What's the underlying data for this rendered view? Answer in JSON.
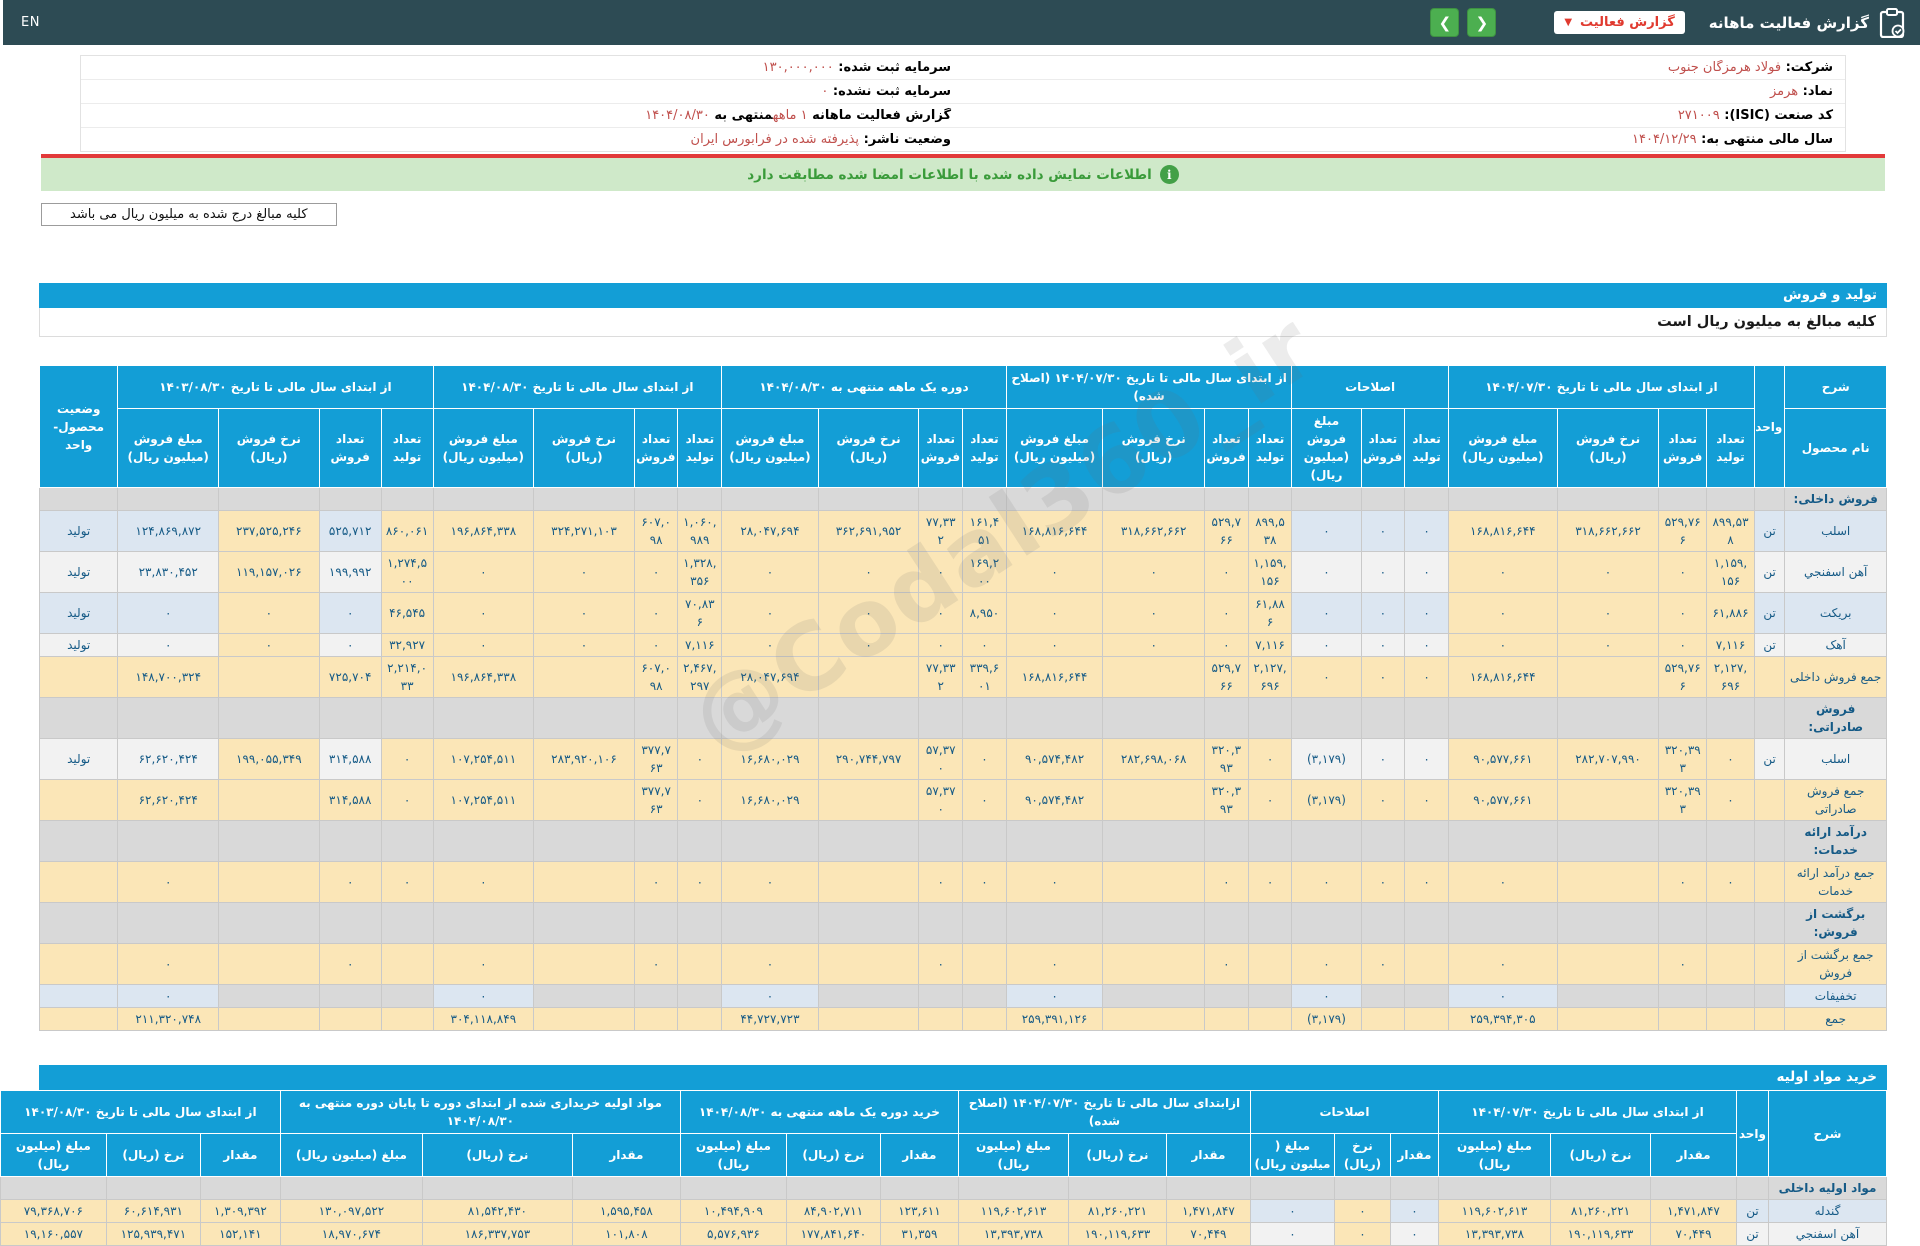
{
  "topbar": {
    "lang": "EN",
    "title": "گزارش فعالیت ماهانه",
    "dropdown_label": "گزارش فعالیت",
    "nav_next": "❯",
    "nav_prev": "❮"
  },
  "info": {
    "rows": [
      {
        "right": [
          {
            "t": "شرکت: ",
            "b": 1
          },
          {
            "t": "فولاد هرمزگان جنوب",
            "hl": 1,
            "link": 1
          }
        ],
        "left": [
          {
            "t": "سرمایه ثبت شده: ",
            "b": 1
          },
          {
            "t": "۱۳۰,۰۰۰,۰۰۰",
            "hl": 1
          }
        ]
      },
      {
        "right": [
          {
            "t": "نماد: ",
            "b": 1
          },
          {
            "t": "هرمز",
            "hl": 1,
            "link": 1
          }
        ],
        "left": [
          {
            "t": "سرمایه ثبت نشده: ",
            "b": 1
          },
          {
            "t": "۰",
            "hl": 1
          }
        ]
      },
      {
        "right": [
          {
            "t": "کد صنعت (ISIC): ",
            "b": 1
          },
          {
            "t": "۲۷۱۰۰۹",
            "hl": 1
          }
        ],
        "left": [
          {
            "t": "گزارش فعالیت ماهانه ",
            "b": 1
          },
          {
            "t": "۱ ماهه",
            "hl": 1
          },
          {
            "t": "منتهی به ",
            "b": 1
          },
          {
            "t": "۱۴۰۴/۰۸/۳۰",
            "hl": 1
          }
        ]
      },
      {
        "right": [
          {
            "t": "سال مالی منتهی به: ",
            "b": 1
          },
          {
            "t": "۱۴۰۴/۱۲/۲۹",
            "hl": 1
          }
        ],
        "left": [
          {
            "t": "وضعیت ناشر: ",
            "b": 1
          },
          {
            "t": "پذیرفته شده در فرابورس ایران",
            "hl": 1
          }
        ]
      }
    ]
  },
  "signature_notice": "اطلاعات نمایش داده شده با اطلاعات امضا شده مطابقت دارد",
  "unit_note": "کلیه مبالغ درج شده به میلیون ریال می باشد",
  "watermark": "@Codal360_ir",
  "production_sales": {
    "title": "تولید و فروش",
    "subtitle": "کلیه مبالغ به میلیون ریال است",
    "desc_top": "شرح",
    "desc_bottom": "نام محصول",
    "unit_header": "واحد",
    "status_header": "وضعیت محصول-واحد",
    "groups": [
      {
        "label": "از ابتدای سال مالی تا تاریخ ۱۴۰۴/۰۷/۳۰",
        "cols": [
          "تعداد تولید",
          "تعداد فروش",
          "نرخ فروش (ریال)",
          "مبلغ فروش (میلیون ریال)"
        ]
      },
      {
        "label": "اصلاحات",
        "cols": [
          "تعداد تولید",
          "تعداد فروش",
          "مبلغ فروش (میلیون ریال)"
        ]
      },
      {
        "label": "از ابتدای سال مالی تا تاریخ ۱۴۰۴/۰۷/۳۰ (اصلاح شده)",
        "cols": [
          "تعداد تولید",
          "تعداد فروش",
          "نرخ فروش (ریال)",
          "مبلغ فروش (میلیون ریال)"
        ]
      },
      {
        "label": "دوره یک ماهه منتهی به ۱۴۰۴/۰۸/۳۰",
        "cols": [
          "تعداد تولید",
          "تعداد فروش",
          "نرخ فروش (ریال)",
          "مبلغ فروش (میلیون ریال)"
        ]
      },
      {
        "label": "از ابتدای سال مالی تا تاریخ ۱۴۰۴/۰۸/۳۰",
        "cols": [
          "تعداد تولید",
          "تعداد فروش",
          "نرخ فروش (ریال)",
          "مبلغ فروش (میلیون ریال)"
        ]
      },
      {
        "label": "از ابتدای سال مالی تا تاریخ ۱۴۰۳/۰۸/۳۰",
        "cols": [
          "تعداد تولید",
          "تعداد فروش",
          "نرخ فروش (ریال)",
          "مبلغ فروش (میلیون ریال)"
        ]
      }
    ],
    "rows": [
      {
        "type": "section",
        "name": "فروش داخلی:"
      },
      {
        "type": "data",
        "shade": "blue",
        "name": "اسلب",
        "unit": "تن",
        "status": "تولید",
        "cells": [
          "۸۹۹,۵۳۸",
          "۵۲۹,۷۶۶",
          "۳۱۸,۶۶۲,۶۶۲",
          "۱۶۸,۸۱۶,۶۴۴",
          "۰",
          "۰",
          "۰",
          "۸۹۹,۵۳۸",
          "۵۲۹,۷۶۶",
          "۳۱۸,۶۶۲,۶۶۲",
          "۱۶۸,۸۱۶,۶۴۴",
          "۱۶۱,۴۵۱",
          "۷۷,۳۳۲",
          "۳۶۲,۶۹۱,۹۵۲",
          "۲۸,۰۴۷,۶۹۴",
          "۱,۰۶۰,۹۸۹",
          "۶۰۷,۰۹۸",
          "۳۲۴,۲۷۱,۱۰۳",
          "۱۹۶,۸۶۴,۳۳۸",
          "۸۶۰,۰۶۱",
          "۵۲۵,۷۱۲",
          "۲۳۷,۵۲۵,۲۴۶",
          "۱۲۴,۸۶۹,۸۷۲"
        ]
      },
      {
        "type": "data",
        "shade": "white",
        "name": "آهن اسفنجي",
        "unit": "تن",
        "status": "تولید",
        "cells": [
          "۱,۱۵۹,۱۵۶",
          "۰",
          "۰",
          "۰",
          "۰",
          "۰",
          "۰",
          "۱,۱۵۹,۱۵۶",
          "۰",
          "۰",
          "۰",
          "۱۶۹,۲۰۰",
          "۰",
          "۰",
          "۰",
          "۱,۳۲۸,۳۵۶",
          "۰",
          "۰",
          "۰",
          "۱,۲۷۴,۵۰۰",
          "۱۹۹,۹۹۲",
          "۱۱۹,۱۵۷,۰۲۶",
          "۲۳,۸۳۰,۴۵۲"
        ]
      },
      {
        "type": "data",
        "shade": "blue",
        "name": "بریکت",
        "unit": "تن",
        "status": "تولید",
        "cells": [
          "۶۱,۸۸۶",
          "۰",
          "۰",
          "۰",
          "۰",
          "۰",
          "۰",
          "۶۱,۸۸۶",
          "۰",
          "۰",
          "۰",
          "۸,۹۵۰",
          "۰",
          "۰",
          "۰",
          "۷۰,۸۳۶",
          "۰",
          "۰",
          "۰",
          "۴۶,۵۴۵",
          "۰",
          "۰",
          "۰"
        ]
      },
      {
        "type": "data",
        "shade": "white",
        "name": "آهک",
        "unit": "تن",
        "status": "تولید",
        "cells": [
          "۷,۱۱۶",
          "۰",
          "۰",
          "۰",
          "۰",
          "۰",
          "۰",
          "۷,۱۱۶",
          "۰",
          "۰",
          "۰",
          "۰",
          "۰",
          "۰",
          "۰",
          "۷,۱۱۶",
          "۰",
          "۰",
          "۰",
          "۳۲,۹۲۷",
          "۰",
          "۰",
          "۰"
        ]
      },
      {
        "type": "total",
        "name": "جمع فروش داخلی",
        "cells": [
          "۲,۱۲۷,۶۹۶",
          "۵۲۹,۷۶۶",
          "",
          "۱۶۸,۸۱۶,۶۴۴",
          "۰",
          "۰",
          "۰",
          "۲,۱۲۷,۶۹۶",
          "۵۲۹,۷۶۶",
          "",
          "۱۶۸,۸۱۶,۶۴۴",
          "۳۳۹,۶۰۱",
          "۷۷,۳۳۲",
          "",
          "۲۸,۰۴۷,۶۹۴",
          "۲,۴۶۷,۲۹۷",
          "۶۰۷,۰۹۸",
          "",
          "۱۹۶,۸۶۴,۳۳۸",
          "۲,۲۱۴,۰۳۳",
          "۷۲۵,۷۰۴",
          "",
          "۱۴۸,۷۰۰,۳۲۴"
        ]
      },
      {
        "type": "section",
        "name": "فروش صادراتی:"
      },
      {
        "type": "data",
        "shade": "white",
        "name": "اسلب",
        "unit": "تن",
        "status": "تولید",
        "cells": [
          "۰",
          "۳۲۰,۳۹۳",
          "۲۸۲,۷۰۷,۹۹۰",
          "۹۰,۵۷۷,۶۶۱",
          "۰",
          "۰",
          "(۳,۱۷۹)",
          "۰",
          "۳۲۰,۳۹۳",
          "۲۸۲,۶۹۸,۰۶۸",
          "۹۰,۵۷۴,۴۸۲",
          "۰",
          "۵۷,۳۷۰",
          "۲۹۰,۷۴۴,۷۹۷",
          "۱۶,۶۸۰,۰۲۹",
          "۰",
          "۳۷۷,۷۶۳",
          "۲۸۳,۹۲۰,۱۰۶",
          "۱۰۷,۲۵۴,۵۱۱",
          "۰",
          "۳۱۴,۵۸۸",
          "۱۹۹,۰۵۵,۳۴۹",
          "۶۲,۶۲۰,۴۲۴"
        ]
      },
      {
        "type": "total",
        "name": "جمع فروش صادراتی",
        "cells": [
          "۰",
          "۳۲۰,۳۹۳",
          "",
          "۹۰,۵۷۷,۶۶۱",
          "۰",
          "۰",
          "(۳,۱۷۹)",
          "۰",
          "۳۲۰,۳۹۳",
          "",
          "۹۰,۵۷۴,۴۸۲",
          "۰",
          "۵۷,۳۷۰",
          "",
          "۱۶,۶۸۰,۰۲۹",
          "۰",
          "۳۷۷,۷۶۳",
          "",
          "۱۰۷,۲۵۴,۵۱۱",
          "۰",
          "۳۱۴,۵۸۸",
          "",
          "۶۲,۶۲۰,۴۲۴"
        ]
      },
      {
        "type": "section",
        "name": "درآمد ارائه خدمات:"
      },
      {
        "type": "total",
        "name": "جمع درآمد ارائه خدمات",
        "cells": [
          "۰",
          "۰",
          "",
          "۰",
          "۰",
          "۰",
          "۰",
          "۰",
          "۰",
          "",
          "۰",
          "۰",
          "۰",
          "",
          "۰",
          "۰",
          "۰",
          "",
          "۰",
          "۰",
          "۰",
          "",
          "۰"
        ]
      },
      {
        "type": "section",
        "name": "برگشت از فروش:"
      },
      {
        "type": "total",
        "name": "جمع برگشت از فروش",
        "cells": [
          "",
          "۰",
          "",
          "۰",
          "",
          "۰",
          "۰",
          "",
          "۰",
          "",
          "۰",
          "",
          "۰",
          "",
          "۰",
          "",
          "۰",
          "",
          "۰",
          "",
          "۰",
          "",
          "۰"
        ]
      },
      {
        "type": "discount",
        "shade": "blue",
        "name": "تخفیفات",
        "cells": [
          "",
          "",
          "",
          "۰",
          "",
          "",
          "۰",
          "",
          "",
          "",
          "۰",
          "",
          "",
          "",
          "۰",
          "",
          "",
          "",
          "۰",
          "",
          "",
          "",
          "۰"
        ]
      },
      {
        "type": "total",
        "name": "جمع",
        "cells": [
          "",
          "",
          "",
          "۲۵۹,۳۹۴,۳۰۵",
          "",
          "",
          "(۳,۱۷۹)",
          "",
          "",
          "",
          "۲۵۹,۳۹۱,۱۲۶",
          "",
          "",
          "",
          "۴۴,۷۲۷,۷۲۳",
          "",
          "",
          "",
          "۳۰۴,۱۱۸,۸۴۹",
          "",
          "",
          "",
          "۲۱۱,۳۲۰,۷۴۸"
        ]
      }
    ]
  },
  "raw_materials": {
    "title": "خرید مواد اولیه",
    "desc_header": "شرح",
    "unit_header": "واحد",
    "groups": [
      {
        "label": "از ابتدای سال مالی تا تاریخ ۱۴۰۴/۰۷/۳۰",
        "cols": [
          "مقدار",
          "نرخ (ریال)",
          "مبلغ (میلیون ریال)"
        ]
      },
      {
        "label": "اصلاحات",
        "cols": [
          "مقدار",
          "نرخ (ریال)",
          "مبلغ ( میلیون ریال)"
        ]
      },
      {
        "label": "ازابتدای سال مالی تا تاریخ ۱۴۰۴/۰۷/۳۰ (اصلاح شده)",
        "cols": [
          "مقدار",
          "نرخ (ریال)",
          "مبلغ (میلیون ریال)"
        ]
      },
      {
        "label": "خرید دوره یک ماهه منتهی به ۱۴۰۴/۰۸/۳۰",
        "cols": [
          "مقدار",
          "نرخ (ریال)",
          "مبلغ (میلیون ریال)"
        ]
      },
      {
        "label": "مواد اولیه خریداری شده از ابتدای دوره تا پایان دوره منتهی به ۱۴۰۴/۰۸/۳۰",
        "cols": [
          "مقدار",
          "نرخ (ریال)",
          "مبلغ (میلیون ریال)"
        ]
      },
      {
        "label": "از ابتدای سال مالی تا تاریخ ۱۴۰۳/۰۸/۳۰",
        "cols": [
          "مقدار",
          "نرخ (ریال)",
          "مبلغ (میلیون ریال)"
        ]
      }
    ],
    "rows": [
      {
        "type": "section",
        "name": "مواد اولیه داخلی"
      },
      {
        "type": "data",
        "shade": "blue",
        "name": "گندله",
        "unit": "تن",
        "cells": [
          "۱,۴۷۱,۸۴۷",
          "۸۱,۲۶۰,۲۲۱",
          "۱۱۹,۶۰۲,۶۱۳",
          "۰",
          "۰",
          "۰",
          "۱,۴۷۱,۸۴۷",
          "۸۱,۲۶۰,۲۲۱",
          "۱۱۹,۶۰۲,۶۱۳",
          "۱۲۳,۶۱۱",
          "۸۴,۹۰۲,۷۱۱",
          "۱۰,۴۹۴,۹۰۹",
          "۱,۵۹۵,۴۵۸",
          "۸۱,۵۴۲,۴۳۰",
          "۱۳۰,۰۹۷,۵۲۲",
          "۱,۳۰۹,۳۹۲",
          "۶۰,۶۱۴,۹۳۱",
          "۷۹,۳۶۸,۷۰۶"
        ]
      },
      {
        "type": "data",
        "shade": "white",
        "name": "آهن اسفنجي",
        "unit": "تن",
        "cells": [
          "۷۰,۴۴۹",
          "۱۹۰,۱۱۹,۶۳۳",
          "۱۳,۳۹۳,۷۳۸",
          "۰",
          "۰",
          "۰",
          "۷۰,۴۴۹",
          "۱۹۰,۱۱۹,۶۳۳",
          "۱۳,۳۹۳,۷۳۸",
          "۳۱,۳۵۹",
          "۱۷۷,۸۴۱,۶۴۰",
          "۵,۵۷۶,۹۳۶",
          "۱۰۱,۸۰۸",
          "۱۸۶,۳۳۷,۷۵۳",
          "۱۸,۹۷۰,۶۷۴",
          "۱۵۲,۱۴۱",
          "۱۲۵,۹۳۹,۴۷۱",
          "۱۹,۱۶۰,۵۵۷"
        ]
      }
    ]
  }
}
